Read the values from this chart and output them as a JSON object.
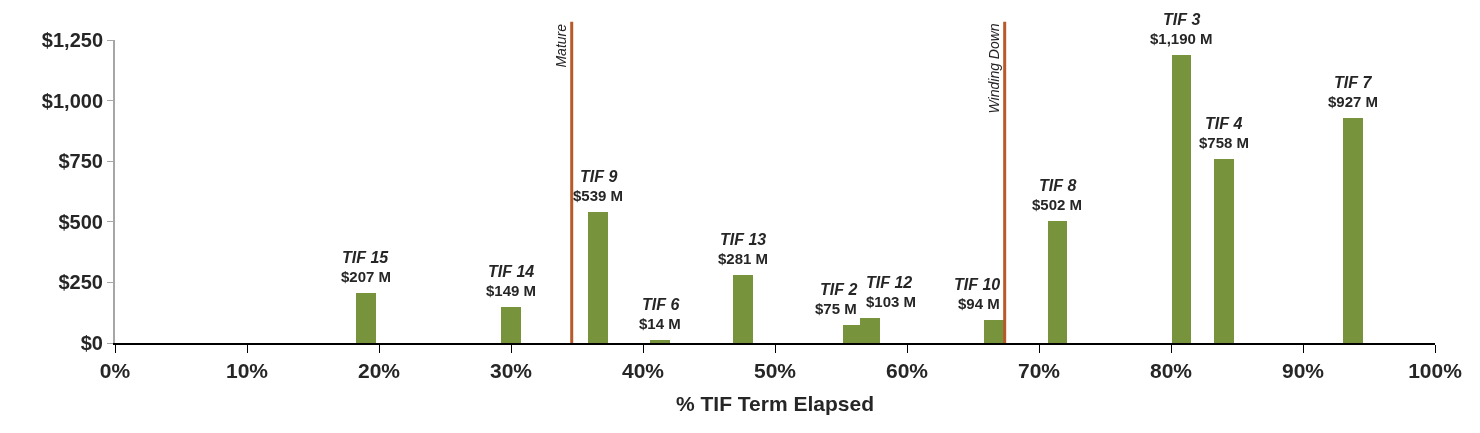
{
  "chart_data": {
    "type": "bar",
    "xlabel": "% TIF Term Elapsed",
    "x": [
      19.0,
      30.0,
      36.6,
      41.3,
      47.6,
      55.9,
      57.2,
      66.6,
      71.4,
      80.8,
      84.0,
      93.8
    ],
    "values": [
      207,
      149,
      539,
      14,
      281,
      75,
      103,
      94,
      502,
      1190,
      758,
      927
    ],
    "value_labels": [
      "$207 M",
      "$149 M",
      "$539 M",
      "$14 M",
      "$281 M",
      "$75 M",
      "$103 M",
      "$94 M",
      "$502 M",
      "$1,190 M",
      "$758 M",
      "$927 M"
    ],
    "annotations": [
      {
        "text": "TIF 15",
        "x": 19.0,
        "y": 207
      },
      {
        "text": "TIF 14",
        "x": 30.0,
        "y": 149
      },
      {
        "text": "TIF 9",
        "x": 36.6,
        "y": 539
      },
      {
        "text": "TIF 6",
        "x": 41.3,
        "y": 14
      },
      {
        "text": "TIF 13",
        "x": 47.6,
        "y": 281
      },
      {
        "text": "TIF 2",
        "x": 55.9,
        "y": 75
      },
      {
        "text": "TIF 12",
        "x": 57.2,
        "y": 103
      },
      {
        "text": "TIF 10",
        "x": 66.6,
        "y": 94
      },
      {
        "text": "TIF 8",
        "x": 71.4,
        "y": 502
      },
      {
        "text": "TIF 3",
        "x": 80.8,
        "y": 1190
      },
      {
        "text": "TIF 4",
        "x": 84.0,
        "y": 758
      },
      {
        "text": "TIF 7",
        "x": 93.8,
        "y": 927
      }
    ],
    "color": "#77933c",
    "ref_lines": [
      {
        "axis": "x",
        "value": 34.6,
        "label": "Mature",
        "color": "#b85a28"
      },
      {
        "axis": "x",
        "value": 67.4,
        "label": "Winding Down",
        "color": "#b85a28"
      }
    ],
    "xlim": [
      0,
      100
    ],
    "xticks": [
      {
        "value": 0,
        "label": "0%"
      },
      {
        "value": 10,
        "label": "10%"
      },
      {
        "value": 20,
        "label": "20%"
      },
      {
        "value": 30,
        "label": "30%"
      },
      {
        "value": 40,
        "label": "40%"
      },
      {
        "value": 50,
        "label": "50%"
      },
      {
        "value": 60,
        "label": "60%"
      },
      {
        "value": 70,
        "label": "70%"
      },
      {
        "value": 80,
        "label": "80%"
      },
      {
        "value": 90,
        "label": "90%"
      },
      {
        "value": 100,
        "label": "100%"
      }
    ],
    "ylim": [
      0,
      1250
    ],
    "yticks": [
      {
        "value": 0,
        "label": "$0"
      },
      {
        "value": 250,
        "label": "$250"
      },
      {
        "value": 500,
        "label": "$500"
      },
      {
        "value": 750,
        "label": "$750"
      },
      {
        "value": 1000,
        "label": "$1,000"
      },
      {
        "value": 1250,
        "label": "$1,250"
      }
    ],
    "line_style": "solid"
  }
}
